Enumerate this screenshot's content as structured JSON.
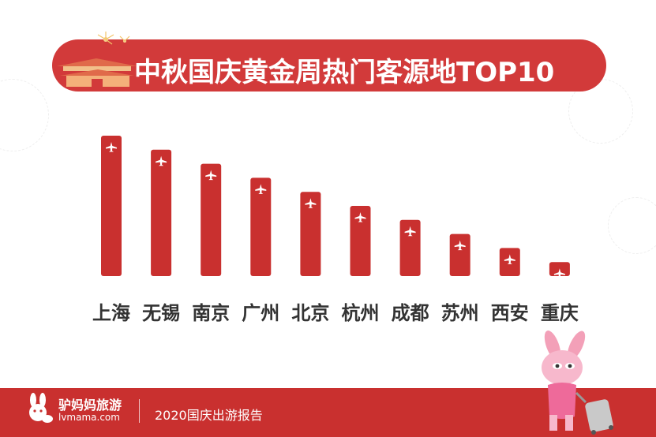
{
  "header": {
    "title": "中秋国庆黄金周热门客源地TOP10"
  },
  "chart_data": {
    "type": "bar",
    "title": "中秋国庆黄金周热门客源地TOP10",
    "categories": [
      "上海",
      "无锡",
      "南京",
      "广州",
      "北京",
      "杭州",
      "成都",
      "苏州",
      "西安",
      "重庆"
    ],
    "values": [
      10,
      9,
      8,
      7,
      6,
      5,
      4,
      3,
      2,
      1
    ],
    "xlabel": "",
    "ylabel": "",
    "ylim": [
      0,
      10
    ],
    "grid": false,
    "bar_color": "#c9302f",
    "bar_icon": "airplane-icon"
  },
  "footer": {
    "brand_name": "驴妈妈旅游",
    "brand_url": "lvmama.com",
    "report_title": "2020国庆出游报告"
  },
  "colors": {
    "accent": "#d23a3a",
    "footer_bg": "#c9302f",
    "text_dark": "#333333"
  }
}
